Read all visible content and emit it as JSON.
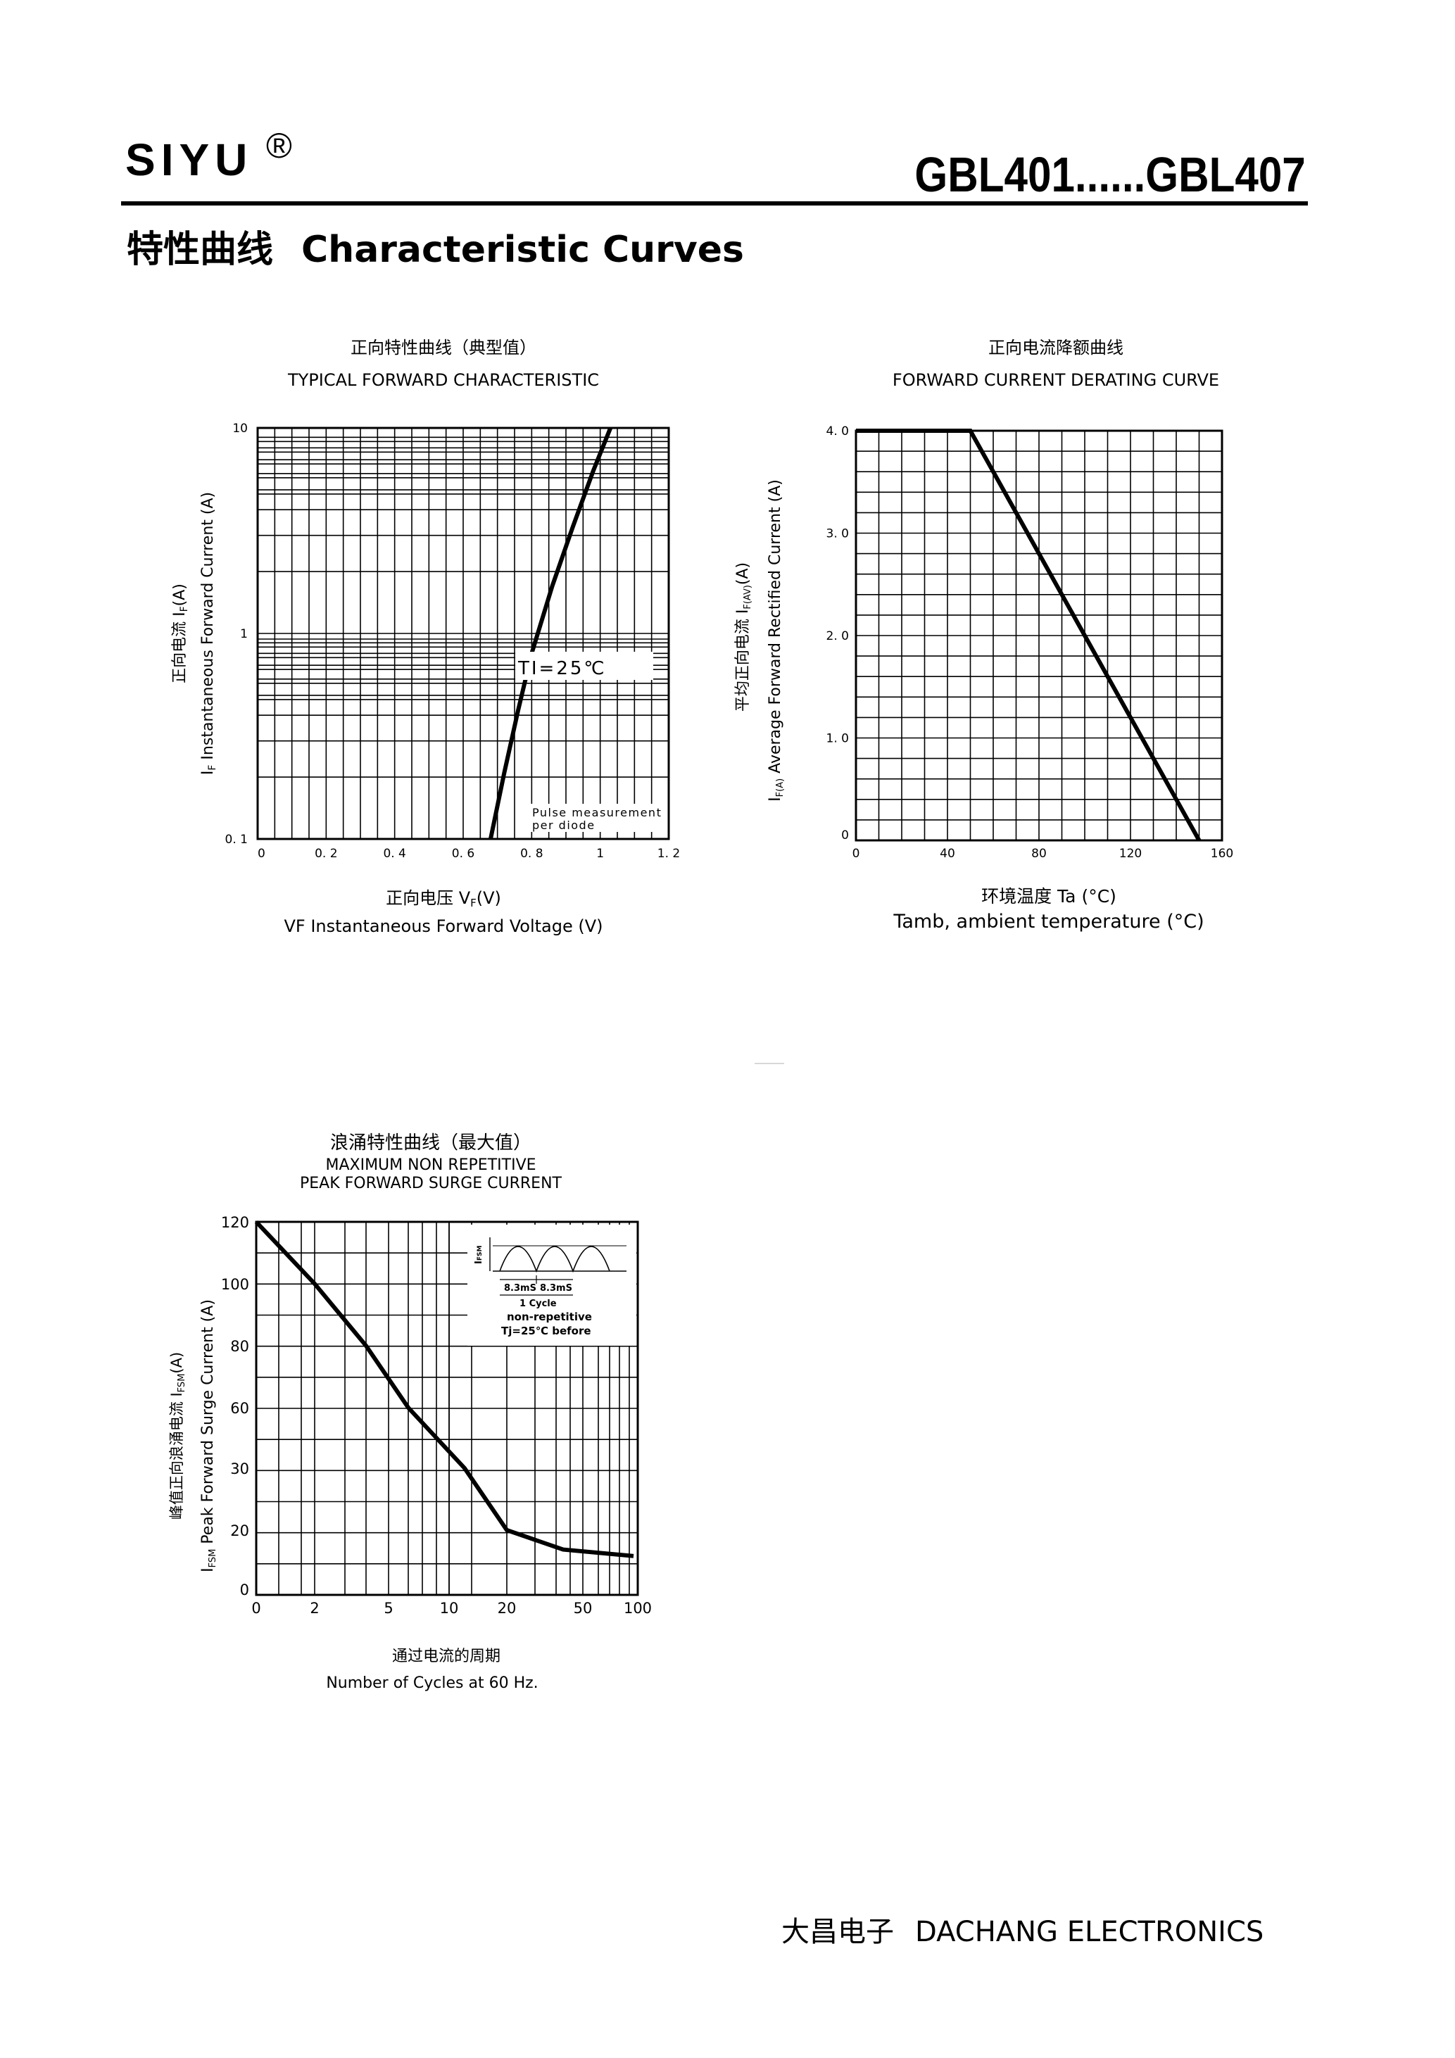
{
  "header": {
    "brand": "SIYU",
    "registered_mark": "®",
    "part_range": "GBL401......GBL407",
    "section_title_cn": "特性曲线",
    "section_title_en": "Characteristic Curves"
  },
  "footer": {
    "company_cn": "大昌电子",
    "company_en": "DACHANG ELECTRONICS"
  },
  "charts": {
    "forward": {
      "title_cn": "正向特性曲线（典型值）",
      "title_en": "TYPICAL FORWARD CHARACTERISTIC",
      "xlabel_cn": "正向电压    V",
      "xlabel_cn_sub": "F",
      "xlabel_cn_unit": "(V)",
      "xlabel_en": "VF  Instantaneous Forward Voltage (V)",
      "ylabel_cn": "正向电流    I",
      "ylabel_cn_sub": "F",
      "ylabel_cn_unit": "(A)",
      "ylabel_en": "I",
      "ylabel_en_sub": "F",
      "ylabel_en_rest": " Instantaneous Forward Current (A)",
      "annotation_temp": "TI=25℃",
      "annotation_pulse_1": "Pulse measurement",
      "annotation_pulse_2": "per diode",
      "x_ticks": [
        "0",
        "0. 2",
        "0. 4",
        "0. 6",
        "0. 8",
        "1",
        "1. 2"
      ],
      "y_ticks": [
        "10",
        "1",
        "0. 1"
      ]
    },
    "derating": {
      "title_cn": "正向电流降额曲线",
      "title_en": "FORWARD CURRENT DERATING CURVE",
      "xlabel_cn": "环境温度  Ta (°C)",
      "xlabel_en": "Tamb, ambient temperature (°C)",
      "ylabel_cn": "平均正向电流     I",
      "ylabel_cn_sub": "F(AV)",
      "ylabel_cn_unit": "(A)",
      "ylabel_en": "I",
      "ylabel_en_sub": "F(A)",
      "ylabel_en_rest": "  Average Forward Rectified Current (A)",
      "x_ticks": [
        "0",
        "40",
        "80",
        "120",
        "160"
      ],
      "y_ticks": [
        "4. 0",
        "3. 0",
        "2. 0",
        "1. 0",
        "0"
      ]
    },
    "surge": {
      "title_cn": "浪涌特性曲线（最大值）",
      "title_en_1": "MAXIMUM NON REPETITIVE",
      "title_en_2": "PEAK FORWARD SURGE CURRENT",
      "xlabel_cn": "通过电流的周期",
      "xlabel_en": "Number  of  Cycles at 60 Hz.",
      "ylabel_cn": "峰值正向浪涌电流    I",
      "ylabel_cn_sub": "FSM",
      "ylabel_cn_unit": "(A)",
      "ylabel_en": "I",
      "ylabel_en_sub": "FSM",
      "ylabel_en_rest": " Peak Forward Surge Current (A)",
      "x_ticks": [
        "0",
        "2",
        "5",
        "10",
        "20",
        "50",
        "100"
      ],
      "y_ticks": [
        "120",
        "100",
        "80",
        "60",
        "30",
        "20",
        "0"
      ],
      "inset": {
        "ifsm": "I",
        "ifsm_sub": "FSM",
        "period_1": "8.3mS",
        "period_2": "8.3mS",
        "cycle": "1 Cycle",
        "note_1": "non-repetitive",
        "note_2": "Tj=25℃  before"
      }
    }
  },
  "chart_data": [
    {
      "type": "line",
      "title": "TYPICAL FORWARD CHARACTERISTIC",
      "xlabel": "VF  Instantaneous Forward Voltage (V)",
      "ylabel": "IF Instantaneous Forward Current (A)",
      "xlim": [
        0,
        1.2
      ],
      "ylim": [
        0.1,
        10
      ],
      "yscale": "log",
      "grid": true,
      "x": [
        0.68,
        0.72,
        0.76,
        0.8,
        0.86,
        0.92,
        0.98,
        1.03
      ],
      "y": [
        0.1,
        0.21,
        0.42,
        0.8,
        1.7,
        3.3,
        6.2,
        10
      ]
    },
    {
      "type": "line",
      "title": "FORWARD CURRENT DERATING CURVE",
      "xlabel": "Tamb, ambient temperature (°C)",
      "ylabel": "IF(A)  Average Forward Rectified Current (A)",
      "xlim": [
        0,
        160
      ],
      "ylim": [
        0,
        4.0
      ],
      "grid": true,
      "x": [
        0,
        50,
        150
      ],
      "y": [
        4.0,
        4.0,
        0
      ]
    },
    {
      "type": "line",
      "title": "MAXIMUM NON REPETITIVE PEAK FORWARD SURGE CURRENT",
      "xlabel": "Number  of  Cycles at 60 Hz.",
      "ylabel": "IFSM Peak Forward Surge Current (A)",
      "xscale": "log",
      "grid": true,
      "x": [
        1,
        2,
        3,
        5,
        7,
        10,
        20,
        50,
        100
      ],
      "y": [
        120,
        100,
        80,
        60,
        45,
        30,
        20,
        14,
        12
      ]
    }
  ]
}
